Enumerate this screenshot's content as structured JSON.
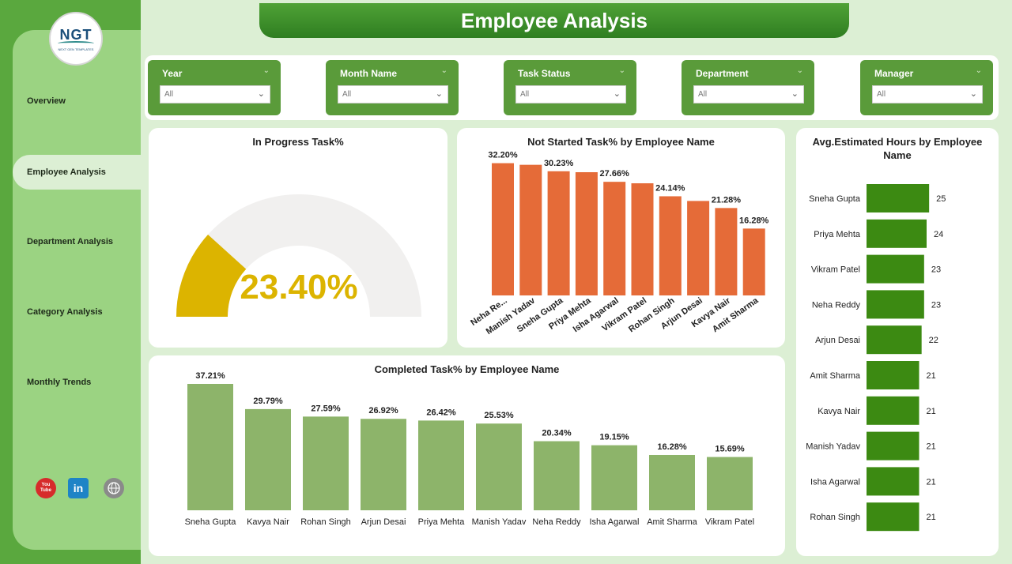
{
  "page_title": "Employee Analysis",
  "logo": {
    "main": "NGT",
    "sub": "NEXT GEN TEMPLATES"
  },
  "sidebar": {
    "items": [
      {
        "label": "Overview"
      },
      {
        "label": "Employee Analysis"
      },
      {
        "label": "Department Analysis"
      },
      {
        "label": "Category Analysis"
      },
      {
        "label": "Monthly Trends"
      }
    ],
    "active": "Employee Analysis",
    "social": [
      {
        "icon": "youtube-icon",
        "label": "You Tube",
        "color": "#d62b2b"
      },
      {
        "icon": "linkedin-icon",
        "label": "in",
        "color": "#1e84c6"
      },
      {
        "icon": "globe-icon",
        "label": "",
        "color": "#8a8a8a"
      }
    ]
  },
  "filters": [
    {
      "label": "Year",
      "value": "All"
    },
    {
      "label": "Month Name",
      "value": "All"
    },
    {
      "label": "Task Status",
      "value": "All"
    },
    {
      "label": "Department",
      "value": "All"
    },
    {
      "label": "Manager",
      "value": "All"
    }
  ],
  "colors": {
    "accent_green": "#5a9b3a",
    "gauge_fill": "#dcb400",
    "gauge_track": "#f1f0ef",
    "bar_orange": "#e56b38",
    "bar_light_green": "#8db46a",
    "bar_dark_green": "#3c8a12"
  },
  "chart_data": [
    {
      "id": "in_progress",
      "type": "gauge",
      "title": "In Progress Task%",
      "value": 23.4,
      "display": "23.40%",
      "min": 0,
      "max": 100
    },
    {
      "id": "not_started",
      "type": "bar",
      "title": "Not Started Task% by Employee Name",
      "categories": [
        "Neha Re...",
        "Manish Yadav",
        "Sneha Gupta",
        "Priya Mehta",
        "Isha Agarwal",
        "Vikram Patel",
        "Rohan Singh",
        "Arjun Desai",
        "Kavya Nair",
        "Amit Sharma"
      ],
      "values": [
        32.2,
        31.8,
        30.23,
        30.0,
        27.66,
        27.3,
        24.14,
        23.0,
        21.28,
        16.28
      ],
      "data_labels": [
        "32.20%",
        "",
        "30.23%",
        "",
        "27.66%",
        "",
        "24.14%",
        "",
        "21.28%",
        "16.28%"
      ],
      "ylim": [
        0,
        40
      ]
    },
    {
      "id": "completed",
      "type": "bar",
      "title": "Completed Task% by Employee Name",
      "categories": [
        "Sneha Gupta",
        "Kavya Nair",
        "Rohan Singh",
        "Arjun Desai",
        "Priya Mehta",
        "Manish Yadav",
        "Neha Reddy",
        "Isha Agarwal",
        "Amit Sharma",
        "Vikram Patel"
      ],
      "values": [
        37.21,
        29.79,
        27.59,
        26.92,
        26.42,
        25.53,
        20.34,
        19.15,
        16.28,
        15.69
      ],
      "data_labels": [
        "37.21%",
        "29.79%",
        "27.59%",
        "26.92%",
        "26.42%",
        "25.53%",
        "20.34%",
        "19.15%",
        "16.28%",
        "15.69%"
      ],
      "ylim": [
        0,
        40
      ]
    },
    {
      "id": "avg_hours",
      "type": "bar",
      "orientation": "horizontal",
      "title": "Avg.Estimated Hours by Employee Name",
      "categories": [
        "Sneha Gupta",
        "Priya Mehta",
        "Vikram Patel",
        "Neha Reddy",
        "Arjun Desai",
        "Amit Sharma",
        "Kavya Nair",
        "Manish Yadav",
        "Isha Agarwal",
        "Rohan Singh"
      ],
      "values": [
        25,
        24,
        23,
        23,
        22,
        21,
        21,
        21,
        21,
        21
      ],
      "data_labels": [
        "25",
        "24",
        "23",
        "23",
        "22",
        "21",
        "21",
        "21",
        "21",
        "21"
      ],
      "xlim": [
        0,
        30
      ]
    }
  ]
}
